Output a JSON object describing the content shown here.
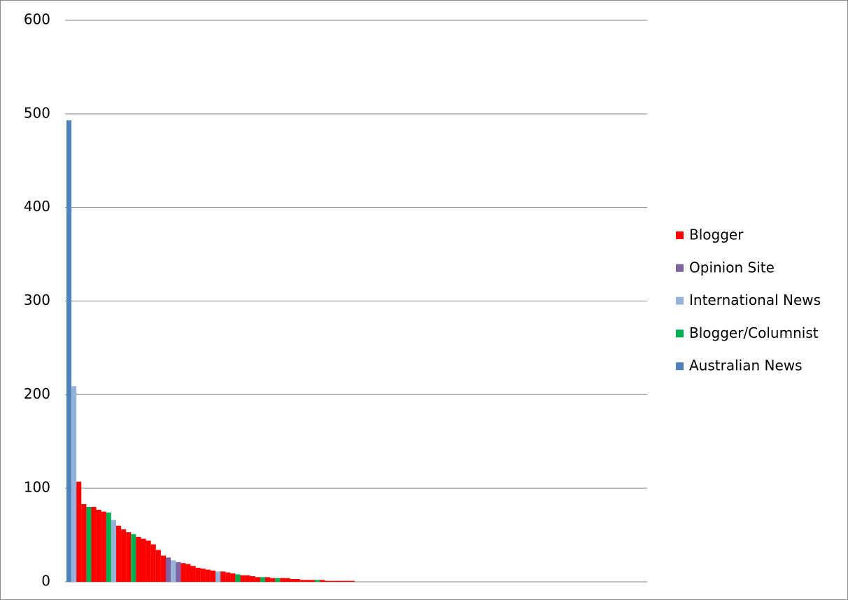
{
  "chart_data": {
    "type": "bar",
    "categories": [
      null,
      null,
      null,
      null,
      null,
      null,
      null,
      null,
      null,
      null,
      null,
      null,
      null,
      null,
      null,
      null,
      null,
      null,
      null,
      null,
      null,
      null,
      null,
      null,
      null,
      null,
      null,
      null,
      null,
      null,
      null,
      null,
      null,
      null,
      null,
      null,
      null,
      null,
      null,
      null,
      null,
      null,
      null,
      null,
      null,
      null,
      null,
      null,
      null,
      null,
      null,
      null,
      null,
      null,
      null,
      null,
      null,
      null
    ],
    "series": [
      {
        "name": "Blogger",
        "color": "#ff0000",
        "values": [
          null,
          null,
          107,
          83,
          null,
          80,
          77,
          75,
          null,
          null,
          60,
          56,
          53,
          null,
          48,
          46,
          44,
          40,
          34,
          28,
          null,
          null,
          null,
          20,
          19,
          17,
          15,
          14,
          13,
          12,
          null,
          11,
          10,
          9,
          null,
          7,
          7,
          6,
          5,
          null,
          5,
          4,
          null,
          4,
          4,
          3,
          3,
          2,
          2,
          2,
          null,
          2,
          1,
          1,
          1,
          1,
          1,
          1
        ]
      },
      {
        "name": "Opinion Site",
        "color": "#8064a2",
        "values": [
          null,
          null,
          null,
          null,
          null,
          null,
          null,
          null,
          null,
          null,
          null,
          null,
          null,
          null,
          null,
          null,
          null,
          null,
          null,
          null,
          26,
          null,
          21,
          null,
          null,
          null,
          null,
          null,
          null,
          null,
          null,
          null,
          null,
          null,
          null,
          null,
          null,
          null,
          null,
          null,
          null,
          null,
          null,
          null,
          null,
          null,
          null,
          null,
          null,
          null,
          null,
          null,
          null,
          null,
          null,
          null,
          null,
          null
        ]
      },
      {
        "name": "International News",
        "color": "#95b3d7",
        "values": [
          null,
          209,
          null,
          null,
          null,
          null,
          null,
          null,
          null,
          66,
          null,
          null,
          null,
          null,
          null,
          null,
          null,
          null,
          null,
          null,
          null,
          23,
          null,
          null,
          null,
          null,
          null,
          null,
          null,
          null,
          11,
          null,
          null,
          null,
          null,
          null,
          null,
          null,
          null,
          null,
          null,
          null,
          null,
          null,
          null,
          null,
          null,
          null,
          null,
          null,
          null,
          null,
          null,
          null,
          null,
          null,
          null,
          null
        ]
      },
      {
        "name": "Blogger/Columnist",
        "color": "#00b050",
        "values": [
          null,
          null,
          null,
          null,
          80,
          null,
          null,
          null,
          74,
          null,
          null,
          null,
          null,
          51,
          null,
          null,
          null,
          null,
          null,
          null,
          null,
          null,
          null,
          null,
          null,
          null,
          null,
          null,
          null,
          null,
          null,
          null,
          null,
          null,
          8,
          null,
          null,
          null,
          null,
          5,
          null,
          null,
          4,
          null,
          null,
          null,
          null,
          null,
          null,
          null,
          2,
          null,
          null,
          null,
          null,
          null,
          null,
          null
        ]
      },
      {
        "name": "Australian News",
        "color": "#4f81bd",
        "values": [
          493,
          null,
          null,
          null,
          null,
          null,
          null,
          null,
          null,
          null,
          null,
          null,
          null,
          null,
          null,
          null,
          null,
          null,
          null,
          null,
          null,
          null,
          null,
          null,
          null,
          null,
          null,
          null,
          null,
          null,
          null,
          null,
          null,
          null,
          null,
          null,
          null,
          null,
          null,
          null,
          null,
          null,
          null,
          null,
          null,
          null,
          null,
          null,
          null,
          null,
          null,
          null,
          null,
          null,
          null,
          null,
          null,
          null
        ]
      }
    ],
    "ylim": [
      0,
      600
    ],
    "yticks": [
      0,
      100,
      200,
      300,
      400,
      500,
      600
    ],
    "grid": true,
    "legend": "right"
  }
}
